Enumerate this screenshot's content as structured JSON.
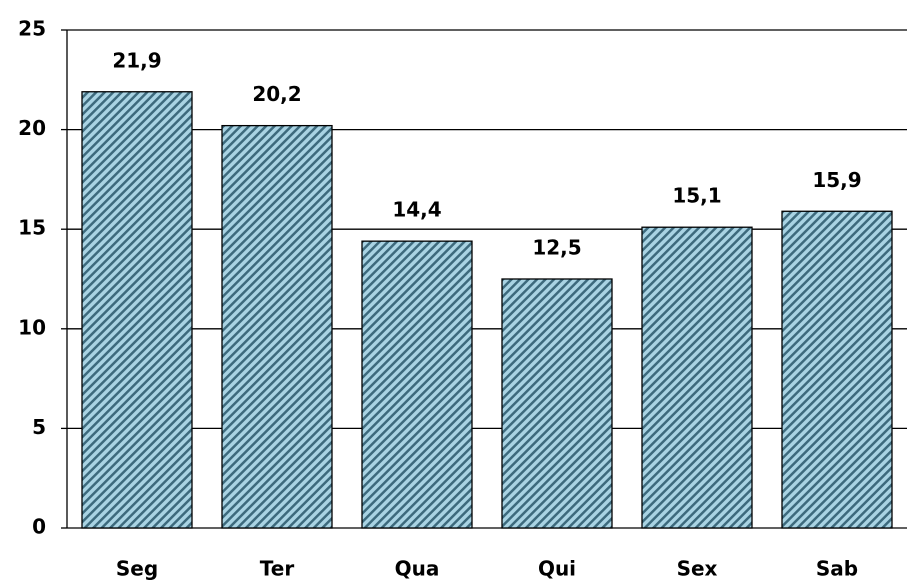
{
  "chart_data": {
    "type": "bar",
    "categories": [
      "Seg",
      "Ter",
      "Qua",
      "Qui",
      "Sex",
      "Sab"
    ],
    "values": [
      21.9,
      20.2,
      14.4,
      12.5,
      15.1,
      15.9
    ],
    "value_labels": [
      "21,9",
      "20,2",
      "14,4",
      "12,5",
      "15,1",
      "15,9"
    ],
    "color": "#a9d3e3",
    "ylim": [
      0,
      25
    ],
    "yticks": [
      0,
      5,
      10,
      15,
      20,
      25
    ],
    "grid": true
  }
}
